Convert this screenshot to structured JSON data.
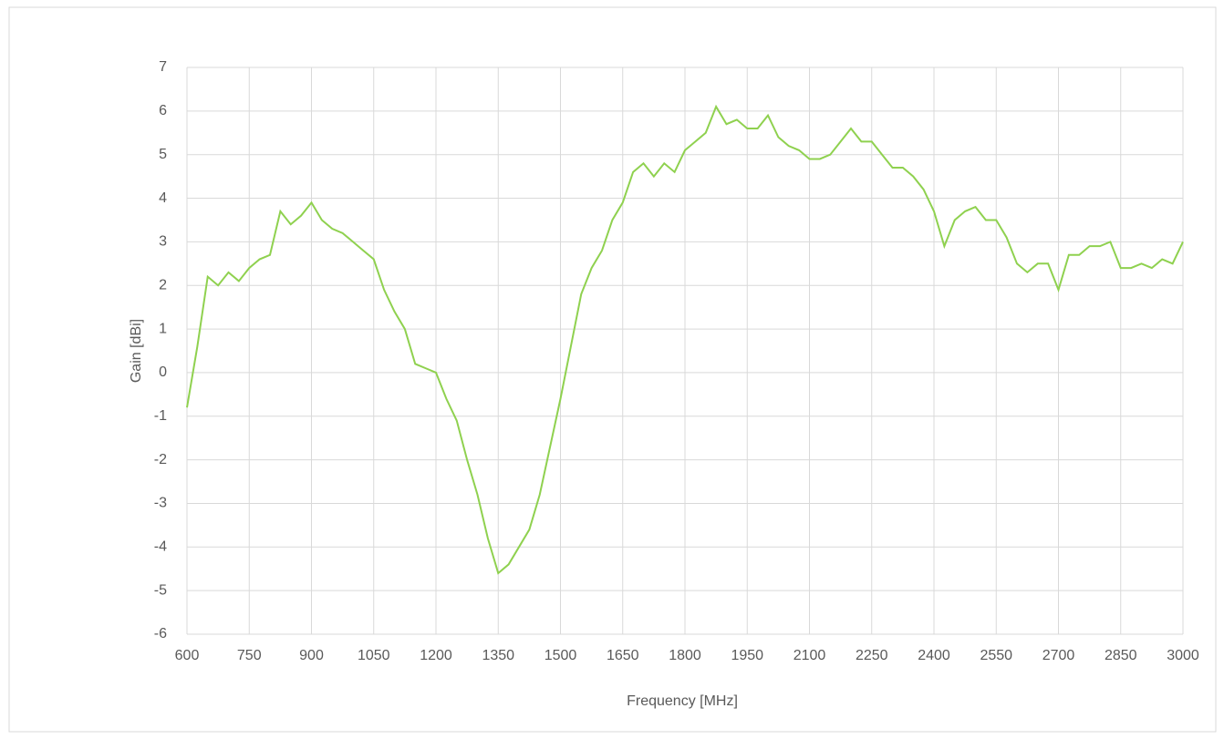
{
  "chart_data": {
    "type": "line",
    "xlabel": "Frequency [MHz]",
    "ylabel": "Gain [dBi]",
    "x": [
      600,
      625,
      650,
      675,
      700,
      725,
      750,
      775,
      800,
      825,
      850,
      875,
      900,
      925,
      950,
      975,
      1000,
      1025,
      1050,
      1075,
      1100,
      1125,
      1150,
      1175,
      1200,
      1225,
      1250,
      1275,
      1300,
      1325,
      1350,
      1375,
      1400,
      1425,
      1450,
      1475,
      1500,
      1525,
      1550,
      1575,
      1600,
      1625,
      1650,
      1675,
      1700,
      1725,
      1750,
      1775,
      1800,
      1825,
      1850,
      1875,
      1900,
      1925,
      1950,
      1975,
      2000,
      2025,
      2050,
      2075,
      2100,
      2125,
      2150,
      2175,
      2200,
      2225,
      2250,
      2275,
      2300,
      2325,
      2350,
      2375,
      2400,
      2425,
      2450,
      2475,
      2500,
      2525,
      2550,
      2575,
      2600,
      2625,
      2650,
      2675,
      2700,
      2725,
      2750,
      2775,
      2800,
      2825,
      2850,
      2875,
      2900,
      2925,
      2950,
      2975,
      3000
    ],
    "series": [
      {
        "color": "#8fd14f",
        "values": [
          -0.8,
          0.6,
          2.2,
          2.0,
          2.3,
          2.1,
          2.4,
          2.6,
          2.7,
          3.7,
          3.4,
          3.6,
          3.9,
          3.5,
          3.3,
          3.2,
          3.0,
          2.8,
          2.6,
          1.9,
          1.4,
          1.0,
          0.2,
          0.1,
          0.0,
          -0.6,
          -1.1,
          -2.0,
          -2.8,
          -3.8,
          -4.6,
          -4.4,
          -4.0,
          -3.6,
          -2.8,
          -1.7,
          -0.6,
          0.6,
          1.8,
          2.4,
          2.8,
          3.5,
          3.9,
          4.6,
          4.8,
          4.5,
          4.8,
          4.6,
          5.1,
          5.3,
          5.5,
          6.1,
          5.7,
          5.8,
          5.6,
          5.6,
          5.9,
          5.4,
          5.2,
          5.1,
          4.9,
          4.9,
          5.0,
          5.3,
          5.6,
          5.3,
          5.3,
          5.0,
          4.7,
          4.7,
          4.5,
          4.2,
          3.7,
          2.9,
          3.5,
          3.7,
          3.8,
          3.5,
          3.5,
          3.1,
          2.5,
          2.3,
          2.5,
          2.5,
          1.9,
          2.7,
          2.7,
          2.9,
          2.9,
          3.0,
          2.4,
          2.4,
          2.5,
          2.4,
          2.6,
          2.5,
          3.0
        ]
      }
    ],
    "xlim": [
      600,
      3000
    ],
    "xticks": [
      600,
      750,
      900,
      1050,
      1200,
      1350,
      1500,
      1650,
      1800,
      1950,
      2100,
      2250,
      2400,
      2550,
      2700,
      2850,
      3000
    ],
    "ylim": [
      -6,
      7
    ],
    "yticks": [
      -6,
      -5,
      -4,
      -3,
      -2,
      -1,
      0,
      1,
      2,
      3,
      4,
      5,
      6,
      7
    ],
    "grid": true
  }
}
